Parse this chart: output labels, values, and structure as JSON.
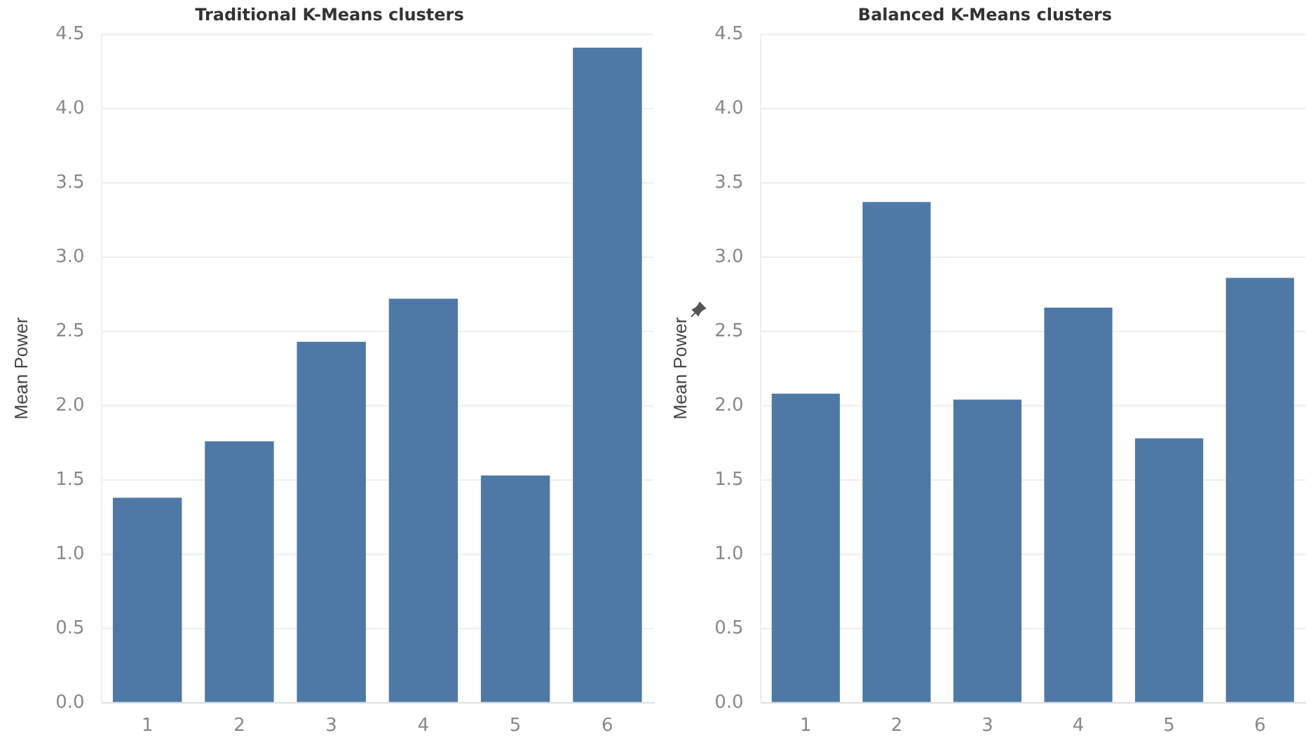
{
  "chart_data": [
    {
      "type": "bar",
      "title": "Traditional K-Means clusters",
      "ylabel": "Mean Power",
      "categories": [
        "1",
        "2",
        "3",
        "4",
        "5",
        "6"
      ],
      "values": [
        1.38,
        1.76,
        2.43,
        2.72,
        1.53,
        4.41
      ],
      "color": "#4e79a7",
      "ylim": [
        0,
        4.5
      ],
      "yticks": [
        {
          "value": 0,
          "label": "0.0"
        },
        0.5,
        {
          "value": 1,
          "label": "1.0"
        },
        1.5,
        {
          "value": 2,
          "label": "2.0"
        },
        2.5,
        {
          "value": 3,
          "label": "3.0"
        },
        3.5,
        {
          "value": 4,
          "label": "4.0"
        },
        4.5
      ],
      "grid": "y"
    },
    {
      "type": "bar",
      "title": "Balanced K-Means clusters",
      "ylabel": "Mean Power",
      "categories": [
        "1",
        "2",
        "3",
        "4",
        "5",
        "6"
      ],
      "values": [
        2.08,
        3.37,
        2.04,
        2.66,
        1.78,
        2.86
      ],
      "color": "#4e79a7",
      "ylim": [
        0,
        4.5
      ],
      "yticks": [
        {
          "value": 0,
          "label": "0.0"
        },
        0.5,
        {
          "value": 1,
          "label": "1.0"
        },
        1.5,
        {
          "value": 2,
          "label": "2.0"
        },
        2.5,
        {
          "value": 3,
          "label": "3.0"
        },
        3.5,
        {
          "value": 4,
          "label": "4.0"
        },
        4.5
      ],
      "grid": "y"
    }
  ]
}
